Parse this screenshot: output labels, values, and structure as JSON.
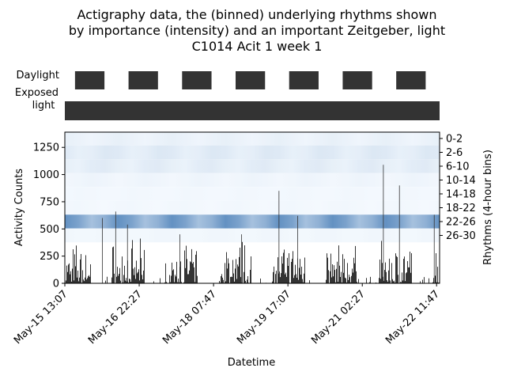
{
  "title_lines": [
    "Actigraphy data, the (binned) underlying rhythms shown",
    "by importance (intensity) and an important Zeitgeber, light",
    "C1014 Acit 1 week 1"
  ],
  "panels": {
    "daylight_label": "Daylight",
    "exposed_label_lines": [
      "Exposed",
      "light"
    ]
  },
  "colors": {
    "bar": "#333333",
    "heat_light": "#f7fbff",
    "heat_mid": "#c6dbef",
    "heat_strong": "#6b9ac8",
    "heat_dark": "#4a7fb8"
  },
  "daylight_days": 7,
  "chart_data": {
    "type": "bar",
    "xlabel": "Datetime",
    "ylabel": "Activity Counts",
    "y2label": "Rhythms (4-hour bins)",
    "ylim": [
      0,
      1390
    ],
    "yticks": [
      0,
      250,
      500,
      750,
      1000,
      1250
    ],
    "x_start_day": 0,
    "x_end_day": 7.0,
    "xticks": [
      {
        "day": 0.0,
        "label": "May-15 13:07"
      },
      {
        "day": 1.389,
        "label": "May-16 22:27"
      },
      {
        "day": 2.778,
        "label": "May-18 07:47"
      },
      {
        "day": 4.167,
        "label": "May-19 17:07"
      },
      {
        "day": 5.556,
        "label": "May-21 02:27"
      },
      {
        "day": 6.944,
        "label": "May-22 11:47"
      }
    ],
    "rhythm_bins": [
      "0-2",
      "2-6",
      "6-10",
      "10-14",
      "14-18",
      "18-22",
      "22-26",
      "26-30"
    ],
    "rhythm_intensity": [
      0.08,
      0.14,
      0.12,
      0.05,
      0.03,
      0.03,
      0.75,
      0.04
    ],
    "activity_peaks": [
      {
        "day": 0.7,
        "value": 600
      },
      {
        "day": 0.95,
        "value": 660
      },
      {
        "day": 1.17,
        "value": 540
      },
      {
        "day": 2.15,
        "value": 450
      },
      {
        "day": 3.3,
        "value": 450
      },
      {
        "day": 4.0,
        "value": 850
      },
      {
        "day": 4.35,
        "value": 620
      },
      {
        "day": 5.95,
        "value": 1090
      },
      {
        "day": 6.25,
        "value": 900
      },
      {
        "day": 6.9,
        "value": 630
      }
    ]
  }
}
